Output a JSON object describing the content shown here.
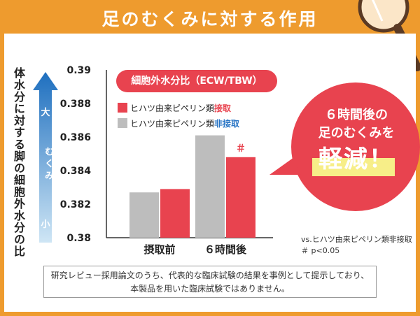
{
  "title": "足のむくみに対する作用",
  "y_axis_label": "体水分に対する脚の細胞外水分の比",
  "arrow": {
    "top_label": "大",
    "mid_label": "むくみ",
    "bottom_label": "小",
    "color": "#1e6fbf"
  },
  "pill_label": "細胞外水分比（ECW/TBW）",
  "legend": [
    {
      "prefix": "ヒハツ由来ピペリン類",
      "suffix": "接取",
      "color": "#e8434f",
      "suffix_color": "#e8434f"
    },
    {
      "prefix": "ヒハツ由来ピペリン類",
      "suffix": "非接取",
      "color": "#bdbdbd",
      "suffix_color": "#2a76c5"
    }
  ],
  "significance_mark": "＃",
  "notes": {
    "line1": "vs.ヒハツ由来ピペリン類非接取",
    "line2": "＃ p<0.05"
  },
  "bubble": {
    "line1": "６時間後の",
    "line2": "足のむくみを",
    "line3": "軽減！",
    "color": "#e8434f",
    "highlight": "#f7ee88"
  },
  "disclaimer": {
    "line1": "研究レビュー採用論文のうち、代表的な臨床試験の結果を事例として提示しており、",
    "line2": "本製品を用いた臨床試験ではありません。"
  },
  "chart_data": {
    "type": "bar",
    "categories": [
      "摂取前",
      "６時間後"
    ],
    "series": [
      {
        "name": "ヒハツ由来ピペリン類非接取",
        "color": "#bdbdbd",
        "values": [
          0.3827,
          0.3861
        ]
      },
      {
        "name": "ヒハツ由来ピペリン類接取",
        "color": "#e8434f",
        "values": [
          0.3829,
          0.3848
        ]
      }
    ],
    "ylim": [
      0.38,
      0.39
    ],
    "yticks": [
      "0.38",
      "0.382",
      "0.384",
      "0.386",
      "0.388",
      "0.39"
    ],
    "grid": false
  }
}
